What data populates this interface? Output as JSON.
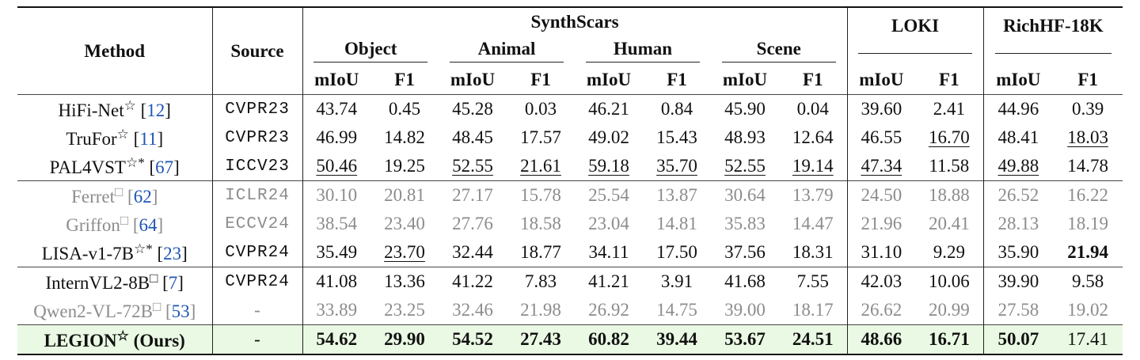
{
  "header": {
    "method": "Method",
    "source": "Source",
    "synthscars": "SynthScars",
    "object": "Object",
    "animal": "Animal",
    "human": "Human",
    "scene": "Scene",
    "loki": "LOKI",
    "richhf": "RichHF-18K",
    "miou": "mIoU",
    "f1": "F1"
  },
  "rows": [
    {
      "name": "HiFi-Net",
      "mark": "☆",
      "cite": "12",
      "source": "CVPR23",
      "gray": false,
      "values": [
        "43.74",
        "0.45",
        "45.28",
        "0.03",
        "46.21",
        "0.84",
        "45.90",
        "0.04",
        "39.60",
        "2.41",
        "44.96",
        "0.39"
      ],
      "fmt": [
        "",
        "",
        "",
        "",
        "",
        "",
        "",
        "",
        "",
        "",
        "",
        ""
      ]
    },
    {
      "name": "TruFor",
      "mark": "☆",
      "cite": "11",
      "source": "CVPR23",
      "gray": false,
      "values": [
        "46.99",
        "14.82",
        "48.45",
        "17.57",
        "49.02",
        "15.43",
        "48.93",
        "12.64",
        "46.55",
        "16.70",
        "48.41",
        "18.03"
      ],
      "fmt": [
        "",
        "",
        "",
        "",
        "",
        "",
        "",
        "",
        "",
        "u",
        "",
        "u"
      ]
    },
    {
      "name": "PAL4VST",
      "mark": "☆*",
      "cite": "67",
      "source": "ICCV23",
      "gray": false,
      "values": [
        "50.46",
        "19.25",
        "52.55",
        "21.61",
        "59.18",
        "35.70",
        "52.55",
        "19.14",
        "47.34",
        "11.58",
        "49.88",
        "14.78"
      ],
      "fmt": [
        "u",
        "",
        "u",
        "u",
        "u",
        "u",
        "u",
        "u",
        "u",
        "",
        "u",
        ""
      ]
    },
    {
      "name": "Ferret",
      "mark": "□",
      "cite": "62",
      "source": "ICLR24",
      "gray": true,
      "values": [
        "30.10",
        "20.81",
        "27.17",
        "15.78",
        "25.54",
        "13.87",
        "30.64",
        "13.79",
        "24.50",
        "18.88",
        "26.52",
        "16.22"
      ],
      "fmt": [
        "",
        "",
        "",
        "",
        "",
        "",
        "",
        "",
        "",
        "",
        "",
        ""
      ]
    },
    {
      "name": "Griffon",
      "mark": "□",
      "cite": "64",
      "source": "ECCV24",
      "gray": true,
      "values": [
        "38.54",
        "23.40",
        "27.76",
        "18.58",
        "23.04",
        "14.81",
        "35.83",
        "14.47",
        "21.96",
        "20.41",
        "28.13",
        "18.19"
      ],
      "fmt": [
        "",
        "",
        "",
        "",
        "",
        "",
        "",
        "",
        "",
        "",
        "",
        ""
      ]
    },
    {
      "name": "LISA-v1-7B",
      "mark": "☆*",
      "cite": "23",
      "source": "CVPR24",
      "gray": false,
      "values": [
        "35.49",
        "23.70",
        "32.44",
        "18.77",
        "34.11",
        "17.50",
        "37.56",
        "18.31",
        "31.10",
        "9.29",
        "35.90",
        "21.94"
      ],
      "fmt": [
        "",
        "u",
        "",
        "",
        "",
        "",
        "",
        "",
        "",
        "",
        "",
        "b"
      ]
    },
    {
      "name": "InternVL2-8B",
      "mark": "□",
      "cite": "7",
      "source": "CVPR24",
      "gray": false,
      "values": [
        "41.08",
        "13.36",
        "41.22",
        "7.83",
        "41.21",
        "3.91",
        "41.68",
        "7.55",
        "42.03",
        "10.06",
        "39.90",
        "9.58"
      ],
      "fmt": [
        "",
        "",
        "",
        "",
        "",
        "",
        "",
        "",
        "",
        "",
        "",
        ""
      ]
    },
    {
      "name": "Qwen2-VL-72B",
      "mark": "□",
      "cite": "53",
      "source": "-",
      "gray": true,
      "values": [
        "33.89",
        "23.25",
        "32.46",
        "21.98",
        "26.92",
        "14.75",
        "39.00",
        "18.17",
        "26.62",
        "20.99",
        "27.58",
        "19.02"
      ],
      "fmt": [
        "",
        "",
        "",
        "",
        "",
        "",
        "",
        "",
        "",
        "",
        "",
        ""
      ]
    },
    {
      "name": "LEGION",
      "mark": "☆",
      "suffix": "(Ours)",
      "source": "-",
      "gray": false,
      "ours": true,
      "values": [
        "54.62",
        "29.90",
        "54.52",
        "27.43",
        "60.82",
        "39.44",
        "53.67",
        "24.51",
        "48.66",
        "16.71",
        "50.07",
        "17.41"
      ],
      "fmt": [
        "b",
        "b",
        "b",
        "b",
        "b",
        "b",
        "b",
        "b",
        "b",
        "b",
        "b",
        ""
      ]
    }
  ]
}
